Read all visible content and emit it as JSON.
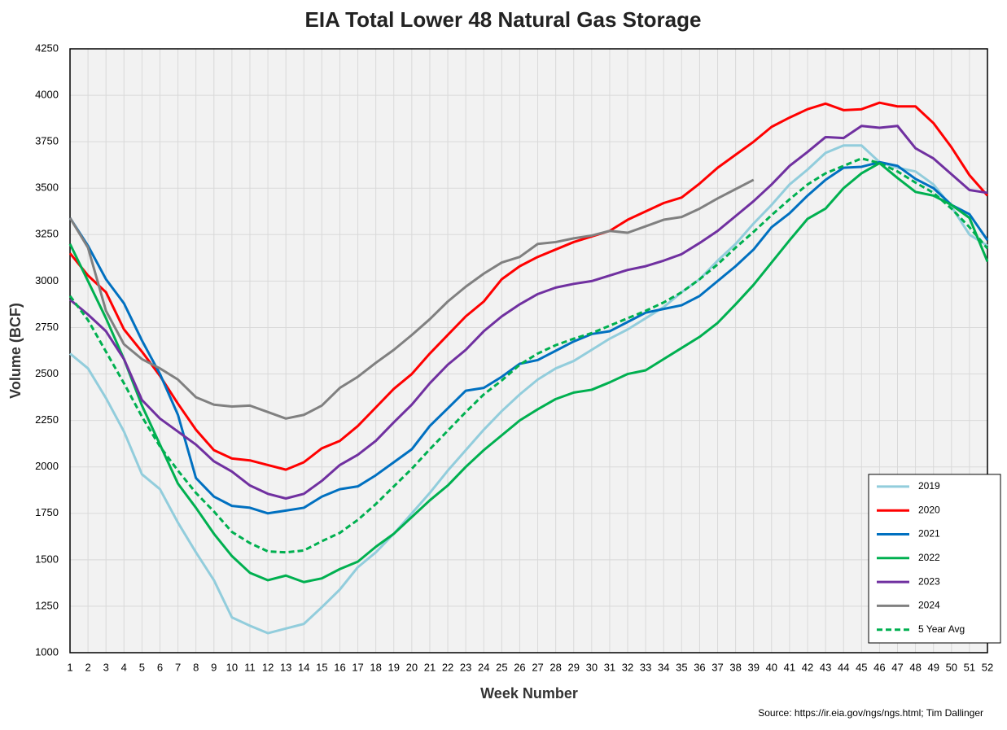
{
  "chart_data": {
    "type": "line",
    "title": "EIA Total Lower 48 Natural Gas Storage",
    "x_label": "Week Number",
    "y_label": "Volume (BCF)",
    "source": "Source: https://ir.eia.gov/ngs/ngs.html; Tim Dallinger",
    "x": [
      1,
      2,
      3,
      4,
      5,
      6,
      7,
      8,
      9,
      10,
      11,
      12,
      13,
      14,
      15,
      16,
      17,
      18,
      19,
      20,
      21,
      22,
      23,
      24,
      25,
      26,
      27,
      28,
      29,
      30,
      31,
      32,
      33,
      34,
      35,
      36,
      37,
      38,
      39,
      40,
      41,
      42,
      43,
      44,
      45,
      46,
      47,
      48,
      49,
      50,
      51,
      52
    ],
    "xlim": [
      1,
      52
    ],
    "ylim": [
      1000,
      4250
    ],
    "yticks": [
      1000,
      1250,
      1500,
      1750,
      2000,
      2250,
      2500,
      2750,
      3000,
      3250,
      3500,
      3750,
      4000,
      4250
    ],
    "grid": true,
    "legend": "bottom-right",
    "series": [
      {
        "name": "2019",
        "color": "#92cddc",
        "values": [
          2610,
          2530,
          2370,
          2190,
          1960,
          1880,
          1700,
          1540,
          1390,
          1190,
          1145,
          1105,
          1130,
          1155,
          1245,
          1340,
          1460,
          1540,
          1640,
          1750,
          1860,
          1980,
          2090,
          2200,
          2300,
          2390,
          2470,
          2530,
          2570,
          2630,
          2690,
          2740,
          2800,
          2860,
          2940,
          3010,
          3110,
          3200,
          3310,
          3410,
          3520,
          3600,
          3690,
          3730,
          3730,
          3640,
          3610,
          3590,
          3520,
          3400,
          3250,
          3190
        ]
      },
      {
        "name": "2020",
        "color": "#ff0000",
        "values": [
          3150,
          3030,
          2940,
          2740,
          2620,
          2490,
          2340,
          2200,
          2090,
          2045,
          2035,
          2010,
          1985,
          2025,
          2100,
          2140,
          2220,
          2320,
          2420,
          2500,
          2610,
          2710,
          2810,
          2890,
          3010,
          3080,
          3130,
          3170,
          3210,
          3240,
          3270,
          3330,
          3375,
          3420,
          3450,
          3525,
          3610,
          3680,
          3750,
          3830,
          3880,
          3925,
          3955,
          3920,
          3925,
          3960,
          3940,
          3940,
          3850,
          3720,
          3570,
          3460
        ]
      },
      {
        "name": "2021",
        "color": "#0070c0",
        "values": [
          3340,
          3190,
          3010,
          2880,
          2680,
          2500,
          2280,
          1940,
          1840,
          1790,
          1780,
          1750,
          1765,
          1780,
          1840,
          1880,
          1895,
          1955,
          2025,
          2095,
          2220,
          2315,
          2410,
          2425,
          2485,
          2555,
          2575,
          2625,
          2675,
          2715,
          2730,
          2780,
          2830,
          2850,
          2870,
          2920,
          3000,
          3080,
          3170,
          3290,
          3365,
          3460,
          3545,
          3610,
          3615,
          3640,
          3620,
          3550,
          3500,
          3410,
          3360,
          3220
        ]
      },
      {
        "name": "2022",
        "color": "#00b050",
        "values": [
          3200,
          3000,
          2800,
          2580,
          2330,
          2120,
          1910,
          1780,
          1640,
          1520,
          1430,
          1390,
          1415,
          1380,
          1400,
          1450,
          1490,
          1570,
          1640,
          1730,
          1820,
          1900,
          2000,
          2090,
          2170,
          2250,
          2310,
          2365,
          2400,
          2415,
          2455,
          2500,
          2520,
          2580,
          2640,
          2700,
          2775,
          2875,
          2980,
          3100,
          3220,
          3335,
          3390,
          3500,
          3580,
          3635,
          3555,
          3480,
          3460,
          3410,
          3340,
          3105
        ]
      },
      {
        "name": "2023",
        "color": "#7030a0",
        "values": [
          2900,
          2820,
          2730,
          2580,
          2360,
          2260,
          2190,
          2120,
          2030,
          1975,
          1900,
          1855,
          1830,
          1855,
          1925,
          2010,
          2065,
          2140,
          2240,
          2335,
          2450,
          2550,
          2630,
          2730,
          2810,
          2875,
          2930,
          2965,
          2985,
          3000,
          3030,
          3060,
          3080,
          3110,
          3145,
          3205,
          3270,
          3350,
          3430,
          3520,
          3620,
          3695,
          3775,
          3770,
          3835,
          3825,
          3835,
          3715,
          3660,
          3575,
          3490,
          3475
        ]
      },
      {
        "name": "2024",
        "color": "#808080",
        "values": [
          3340,
          3180,
          2840,
          2660,
          2580,
          2530,
          2470,
          2375,
          2335,
          2325,
          2330,
          2295,
          2260,
          2280,
          2330,
          2425,
          2485,
          2560,
          2630,
          2710,
          2795,
          2890,
          2970,
          3040,
          3100,
          3130,
          3200,
          3210,
          3230,
          3245,
          3270,
          3260,
          3295,
          3330,
          3345,
          3390,
          3445,
          3495,
          3545,
          null,
          null,
          null,
          null,
          null,
          null,
          null,
          null,
          null,
          null,
          null,
          null,
          null
        ]
      },
      {
        "name": "5 Year Avg",
        "color": "#00b050",
        "dashed": true,
        "values": [
          2920,
          2790,
          2620,
          2450,
          2270,
          2110,
          1980,
          1860,
          1760,
          1650,
          1590,
          1545,
          1540,
          1550,
          1600,
          1645,
          1715,
          1800,
          1895,
          1990,
          2095,
          2195,
          2295,
          2390,
          2465,
          2550,
          2610,
          2655,
          2690,
          2720,
          2760,
          2800,
          2840,
          2885,
          2940,
          3010,
          3090,
          3180,
          3265,
          3355,
          3440,
          3520,
          3580,
          3620,
          3660,
          3635,
          3590,
          3530,
          3475,
          3390,
          3290,
          3175
        ]
      }
    ]
  }
}
